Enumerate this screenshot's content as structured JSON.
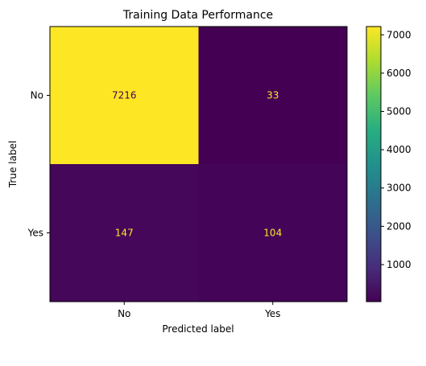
{
  "chart_data": {
    "type": "heatmap",
    "title": "Training Data Performance",
    "xlabel": "Predicted label",
    "ylabel": "True label",
    "x_categories": [
      "No",
      "Yes"
    ],
    "y_categories": [
      "No",
      "Yes"
    ],
    "values": [
      [
        7216,
        33
      ],
      [
        147,
        104
      ]
    ],
    "colormap": "viridis",
    "colorbar": {
      "range": [
        33,
        7216
      ],
      "ticks": [
        1000,
        2000,
        3000,
        4000,
        5000,
        6000,
        7000
      ]
    },
    "text_colors": {
      "on_dark": "#fde725",
      "on_light": "#440154"
    }
  }
}
